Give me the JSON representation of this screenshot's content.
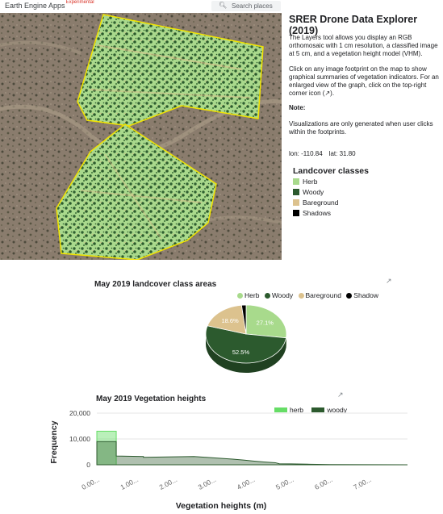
{
  "header": {
    "app_name": "Earth Engine Apps",
    "badge": "Experimental",
    "search_placeholder": "Search places"
  },
  "panel": {
    "title": "SRER Drone Data Explorer (2019)",
    "intro": "The Layers tool allows you display an RGB orthomosaic with 1 cm resolution, a classified image at 5 cm, and a vegetation height model (VHM).",
    "instructions": "Click on any image footprint on the map to show graphical summaries of vegetation indicators. For an enlarged view of the graph, click on the top-right corner icon (↗).",
    "note_label": "Note:",
    "note_text": "Visualizations are only generated when user clicks within the footprints.",
    "lon_label": "lon: -110.84",
    "lat_label": "lat: 31.80",
    "legend_title": "Landcover classes",
    "legend_items": [
      {
        "label": "Herb",
        "color": "#a8da8c"
      },
      {
        "label": "Woody",
        "color": "#2c5a2e"
      },
      {
        "label": "Bareground",
        "color": "#dcc28e"
      },
      {
        "label": "Shadows",
        "color": "#000000"
      }
    ]
  },
  "chart_data": [
    {
      "type": "pie",
      "title": "May 2019 landcover class areas",
      "labels": [
        "Herb",
        "Woody",
        "Bareground",
        "Shadow"
      ],
      "values": [
        27.1,
        52.5,
        18.6,
        1.8
      ],
      "data_labels": [
        "27.1%",
        "52.5%",
        "18.6%",
        ""
      ],
      "colors": [
        "#a8da8c",
        "#2c5a2e",
        "#dcc28e",
        "#000000"
      ],
      "legend": "top"
    },
    {
      "type": "area",
      "title": "May 2019 Vegetation heights",
      "xlabel": "Vegetation heights (m)",
      "ylabel": "Frequency",
      "ylim": [
        0,
        20000
      ],
      "yticks": [
        "0",
        "10,000",
        "20,000"
      ],
      "xticks": [
        "0.00...",
        "1.00...",
        "2.00...",
        "3.00...",
        "4.00...",
        "5.00...",
        "6.00...",
        "7.00..."
      ],
      "xlim": [
        0,
        8
      ],
      "legend": "top-right",
      "series": [
        {
          "name": "herb",
          "color": "#66dd66",
          "x": [
            0,
            0.5,
            0.5,
            8
          ],
          "y": [
            13000,
            13000,
            0,
            0
          ]
        },
        {
          "name": "woody",
          "color": "#2c5a2e",
          "x": [
            0,
            0.5,
            0.5,
            1.2,
            1.2,
            2.5,
            3.0,
            3.5,
            3.8,
            4.0,
            4.3,
            4.6,
            4.7,
            5.0,
            5.5,
            6.0,
            8.0
          ],
          "y": [
            9000,
            9000,
            3400,
            3200,
            2900,
            3200,
            2700,
            2200,
            1800,
            1500,
            1100,
            800,
            400,
            350,
            200,
            80,
            0
          ]
        }
      ]
    }
  ],
  "chart_ui": {
    "expand_glyph": "↗"
  }
}
